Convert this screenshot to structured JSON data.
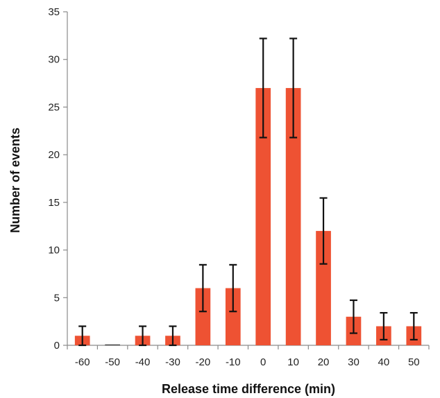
{
  "chart_data": {
    "type": "bar",
    "title": "",
    "xlabel": "Release time difference (min)",
    "ylabel": "Number of events",
    "categories": [
      "-60",
      "-50",
      "-40",
      "-30",
      "-20",
      "-10",
      "0",
      "10",
      "20",
      "30",
      "40",
      "50"
    ],
    "series": [
      {
        "values": [
          1,
          0,
          1,
          1,
          6,
          6,
          27,
          27,
          12,
          3,
          2,
          2
        ],
        "error": [
          1,
          0,
          1,
          1,
          2.45,
          2.45,
          5.2,
          5.2,
          3.46,
          1.73,
          1.41,
          1.41
        ],
        "color": "#ee5233"
      }
    ],
    "ylim": [
      0,
      35
    ],
    "yticks": [
      0,
      5,
      10,
      15,
      20,
      25,
      30,
      35
    ],
    "grid": false,
    "legend": "none"
  }
}
